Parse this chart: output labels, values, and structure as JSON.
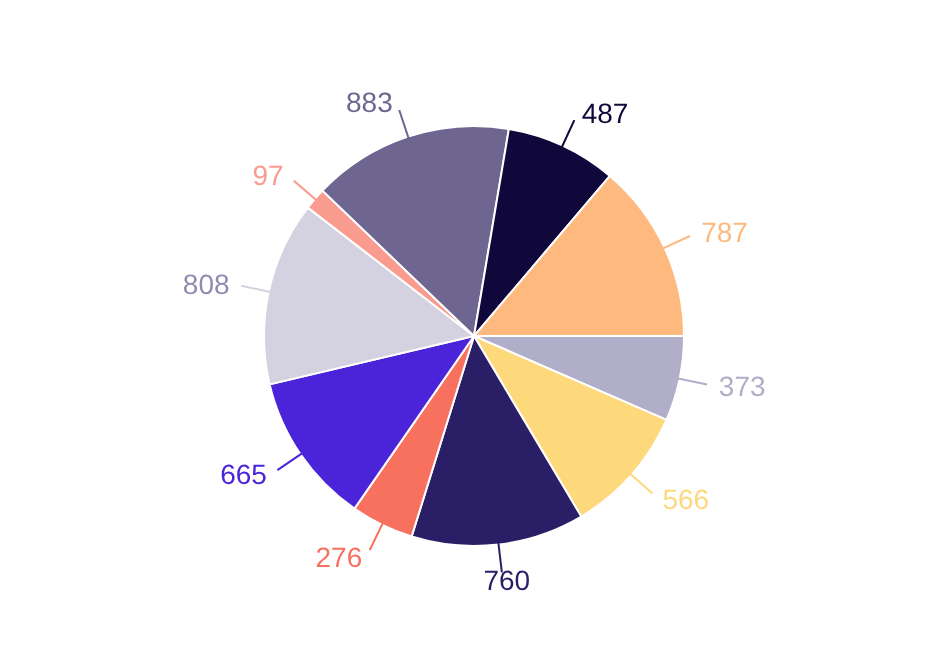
{
  "chart_data": {
    "type": "pie",
    "categories": [
      null,
      null,
      null,
      null,
      null,
      null,
      null,
      null,
      null,
      null
    ],
    "values": [
      373,
      566,
      760,
      276,
      665,
      808,
      97,
      883,
      487,
      787
    ],
    "colors": [
      "#b0aec8",
      "#fdd97c",
      "#2a1f66",
      "#f8715f",
      "#4b24d9",
      "#d4d2e0",
      "#f99b8f",
      "#6e6690",
      "#10073a",
      "#fdb97e"
    ],
    "data_labels": true
  }
}
